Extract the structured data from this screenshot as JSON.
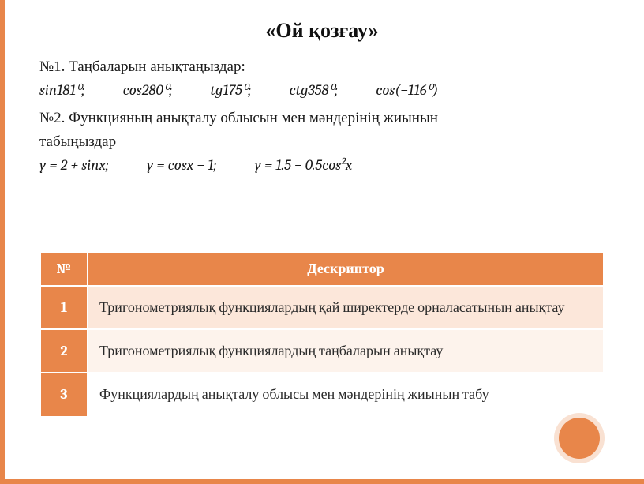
{
  "title": "«Ой қозғау»",
  "task1": {
    "label": "№1. Таңбаларын анықтаңыздар:",
    "items": [
      "sin181⁰;",
      "cos280⁰;",
      "tg175⁰;",
      "ctg358⁰;",
      "cos(−116⁰)"
    ]
  },
  "task2": {
    "label_line1": "№2.  Функцияның анықталу облысын мен мәндерінің жиынын",
    "label_line2": "табыңыздар",
    "items": [
      "y = 2 + sinx;",
      "y = cosx − 1;",
      "y = 1.5 − 0.5cos²x"
    ]
  },
  "table": {
    "headers": {
      "num": "№",
      "desc": "Дескриптор"
    },
    "rows": [
      {
        "n": "1",
        "d": "Тригонометриялық функциялардың қай ширектерде орналасатынын анықтау"
      },
      {
        "n": "2",
        "d": "Тригонометриялық функциялардың таңбаларын анықтау"
      },
      {
        "n": "3",
        "d": "Функциялардың анықталу облысы мен мәндерінің жиынын табу"
      }
    ]
  },
  "colors": {
    "accent": "#e8864a",
    "row_shade_1": "#fce7da",
    "row_shade_2": "#fdf3ec",
    "row_shade_3": "#ffffff",
    "text": "#1a1a1a",
    "white": "#ffffff"
  }
}
